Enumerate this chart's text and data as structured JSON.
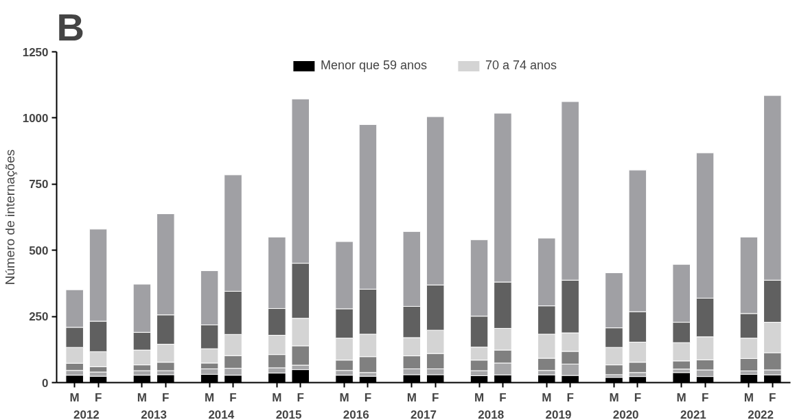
{
  "chart_data": {
    "type": "bar",
    "title": "B",
    "ylabel": "Número de internações",
    "stacked": true,
    "categories": [
      "M",
      "F",
      "M",
      "F",
      "M",
      "F",
      "M",
      "F",
      "M",
      "F",
      "M",
      "F",
      "M",
      "F",
      "M",
      "F",
      "M",
      "F",
      "M",
      "F",
      "M",
      "F"
    ],
    "annotations": [
      "2012",
      "2013",
      "2014",
      "2015",
      "2016",
      "2017",
      "2018",
      "2019",
      "2020",
      "2021",
      "2022"
    ],
    "ylim": [
      0,
      1250
    ],
    "yticks": [
      0,
      250,
      500,
      750,
      1000,
      1250
    ],
    "grid": false,
    "legend": "top",
    "series": [
      {
        "name": "Menor que 59 anos",
        "color": "#000000",
        "values": [
          28,
          24,
          28,
          30,
          31,
          28,
          36,
          49,
          28,
          24,
          30,
          30,
          26,
          29,
          29,
          27,
          20,
          23,
          38,
          23,
          31,
          29
        ]
      },
      {
        "color": "#a6a6a8",
        "values": [
          18,
          16,
          17,
          15,
          21,
          26,
          20,
          17,
          18,
          14,
          22,
          22,
          19,
          45,
          17,
          43,
          10,
          15,
          13,
          25,
          13,
          19
        ]
      },
      {
        "color": "#808080",
        "values": [
          27,
          20,
          22,
          32,
          22,
          48,
          50,
          73,
          39,
          60,
          49,
          58,
          40,
          49,
          46,
          48,
          37,
          39,
          31,
          38,
          47,
          65
        ]
      },
      {
        "name": "70 a 74 anos",
        "color": "#d4d4d4",
        "values": [
          60,
          57,
          56,
          68,
          54,
          80,
          73,
          104,
          83,
          85,
          69,
          88,
          49,
          82,
          91,
          70,
          66,
          76,
          69,
          87,
          77,
          115
        ]
      },
      {
        "color": "#606060",
        "values": [
          76,
          115,
          67,
          111,
          90,
          163,
          101,
          208,
          111,
          170,
          118,
          171,
          117,
          175,
          107,
          199,
          74,
          115,
          77,
          146,
          93,
          159
        ]
      },
      {
        "color": "#a0a0a4",
        "values": [
          142,
          348,
          182,
          382,
          205,
          440,
          270,
          621,
          254,
          622,
          283,
          636,
          289,
          638,
          256,
          675,
          208,
          535,
          219,
          549,
          289,
          698
        ]
      }
    ]
  }
}
